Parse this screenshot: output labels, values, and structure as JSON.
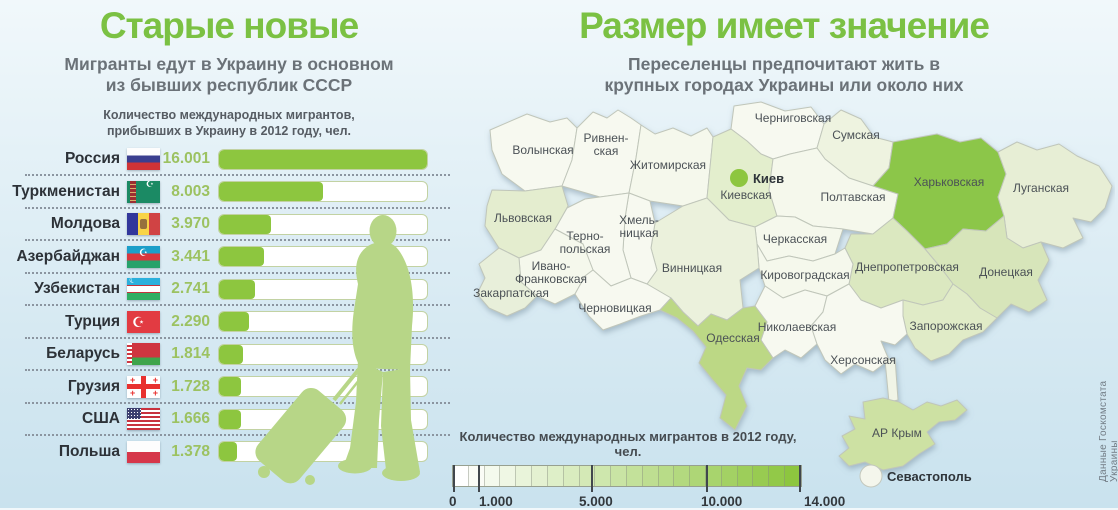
{
  "left_panel": {
    "title": "Старые новые",
    "subtitle_line1": "Мигранты едут в Украину в основном",
    "subtitle_line2": "из бывших республик СССР",
    "heading_line1": "Количество международных мигрантов,",
    "heading_line2": "прибывших в Украину в 2012 году, чел."
  },
  "right_panel": {
    "title": "Размер имеет значение",
    "subtitle_line1": "Переселенцы предпочитают жить в",
    "subtitle_line2": "крупных городах Украины или около них"
  },
  "source_note": "Данные Госкомстата Украины",
  "colors": {
    "accent_green": "#7bc143",
    "bar_green": "#8dc63f",
    "value_green": "#9cc261",
    "silhouette_green": "#b7d687",
    "choropleth_max": "#8cc64a"
  },
  "chart_data": [
    {
      "type": "bar",
      "orientation": "horizontal",
      "title": "Старые новые",
      "note": "Количество международных мигрантов, прибывших в Украину в 2012 году, чел.",
      "categories": [
        "Россия",
        "Туркменистан",
        "Молдова",
        "Азербайджан",
        "Узбекистан",
        "Турция",
        "Беларусь",
        "Грузия",
        "США",
        "Польша"
      ],
      "values": [
        16001,
        8003,
        3970,
        3441,
        2741,
        2290,
        1814,
        1728,
        1666,
        1378
      ],
      "value_labels": [
        "16.001",
        "8.003",
        "3.970",
        "3.441",
        "2.741",
        "2.290",
        "1.814",
        "1.728",
        "1.666",
        "1.378"
      ],
      "flag_icons": [
        "russia-flag-icon",
        "turkmenistan-flag-icon",
        "moldova-flag-icon",
        "azerbaijan-flag-icon",
        "uzbekistan-flag-icon",
        "turkey-flag-icon",
        "belarus-flag-icon",
        "georgia-flag-icon",
        "usa-flag-icon",
        "poland-flag-icon"
      ],
      "xlim": [
        0,
        16001
      ],
      "bar_color": "#8dc63f"
    },
    {
      "type": "heatmap",
      "subtype": "choropleth-map-of-ukraine",
      "title": "Размер имеет значение",
      "legend": {
        "label": "Количество международных мигрантов в 2012 году, чел.",
        "tick_labels": [
          "0",
          "1.000",
          "5.000",
          "10.000",
          "14.000"
        ],
        "tick_values": [
          0,
          1000,
          5000,
          10000,
          14000
        ],
        "range": [
          0,
          14000
        ],
        "min_color": "#ffffff",
        "max_color": "#8dc63f",
        "cells": 22
      },
      "regions": [
        {
          "id": "volyn",
          "label": [
            "Волынская"
          ],
          "color": "#f7f9f0"
        },
        {
          "id": "rivne",
          "label": [
            "Ривнен-",
            "ская"
          ],
          "color": "#f7f9f0"
        },
        {
          "id": "zhytomyr",
          "label": [
            "Житомирская"
          ],
          "color": "#f5f8ec"
        },
        {
          "id": "chernihiv",
          "label": [
            "Черниговская"
          ],
          "color": "#f7f9f0"
        },
        {
          "id": "sumy",
          "label": [
            "Сумская"
          ],
          "color": "#eef3e0"
        },
        {
          "id": "kyiv_obl",
          "label": [
            "Киевская"
          ],
          "color": "#e3eecd"
        },
        {
          "id": "poltava",
          "label": [
            "Полтавская"
          ],
          "color": "#f5f8ec"
        },
        {
          "id": "kharkiv",
          "label": [
            "Харьковская"
          ],
          "color": "#8cc64a"
        },
        {
          "id": "luhansk",
          "label": [
            "Луганская"
          ],
          "color": "#e7eed5"
        },
        {
          "id": "lviv",
          "label": [
            "Львовская"
          ],
          "color": "#e4edcf"
        },
        {
          "id": "ternopil",
          "label": [
            "Терно-",
            "польская"
          ],
          "color": "#f7f9f0"
        },
        {
          "id": "khmelnytsky",
          "label": [
            "Хмель-",
            "ницкая"
          ],
          "color": "#f7f9f0"
        },
        {
          "id": "vinnytsia",
          "label": [
            "Винницкая"
          ],
          "color": "#ebf1dc"
        },
        {
          "id": "cherkasy",
          "label": [
            "Черкасская"
          ],
          "color": "#f5f8ec"
        },
        {
          "id": "kirovohrad",
          "label": [
            "Кировоградская"
          ],
          "color": "#f5f8ec"
        },
        {
          "id": "ivano",
          "label": [
            "Ивано-",
            "Франковская"
          ],
          "color": "#f5f8ec"
        },
        {
          "id": "zakarpattia",
          "label": [
            "Закарпатская"
          ],
          "color": "#e8efda"
        },
        {
          "id": "chernivtsi",
          "label": [
            "Черновицкая"
          ],
          "color": "#f7f9f0"
        },
        {
          "id": "odesa",
          "label": [
            "Одесская"
          ],
          "color": "#bcd885"
        },
        {
          "id": "mykolaiv",
          "label": [
            "Николаевская"
          ],
          "color": "#f7f9f0"
        },
        {
          "id": "kherson",
          "label": [
            "Херсонская"
          ],
          "color": "#f7f9f0"
        },
        {
          "id": "dnipro",
          "label": [
            "Днепропетровская"
          ],
          "color": "#dbe8c0"
        },
        {
          "id": "donetsk",
          "label": [
            "Донецкая"
          ],
          "color": "#d7e5ba"
        },
        {
          "id": "zaporizhzhia",
          "label": [
            "Запорожская"
          ],
          "color": "#e0ebc7"
        },
        {
          "id": "krym",
          "label": [
            "АР Крым"
          ],
          "color": "#cde1a3"
        },
        {
          "id": "isthmus",
          "label": [],
          "color": "#f0f4e6"
        }
      ],
      "cities": [
        {
          "id": "kyiv",
          "label": "Киев",
          "dot_color": "#8dc63f"
        },
        {
          "id": "sevastopol",
          "label": "Севастополь",
          "dot_color": "#f4f6ec"
        }
      ]
    }
  ]
}
